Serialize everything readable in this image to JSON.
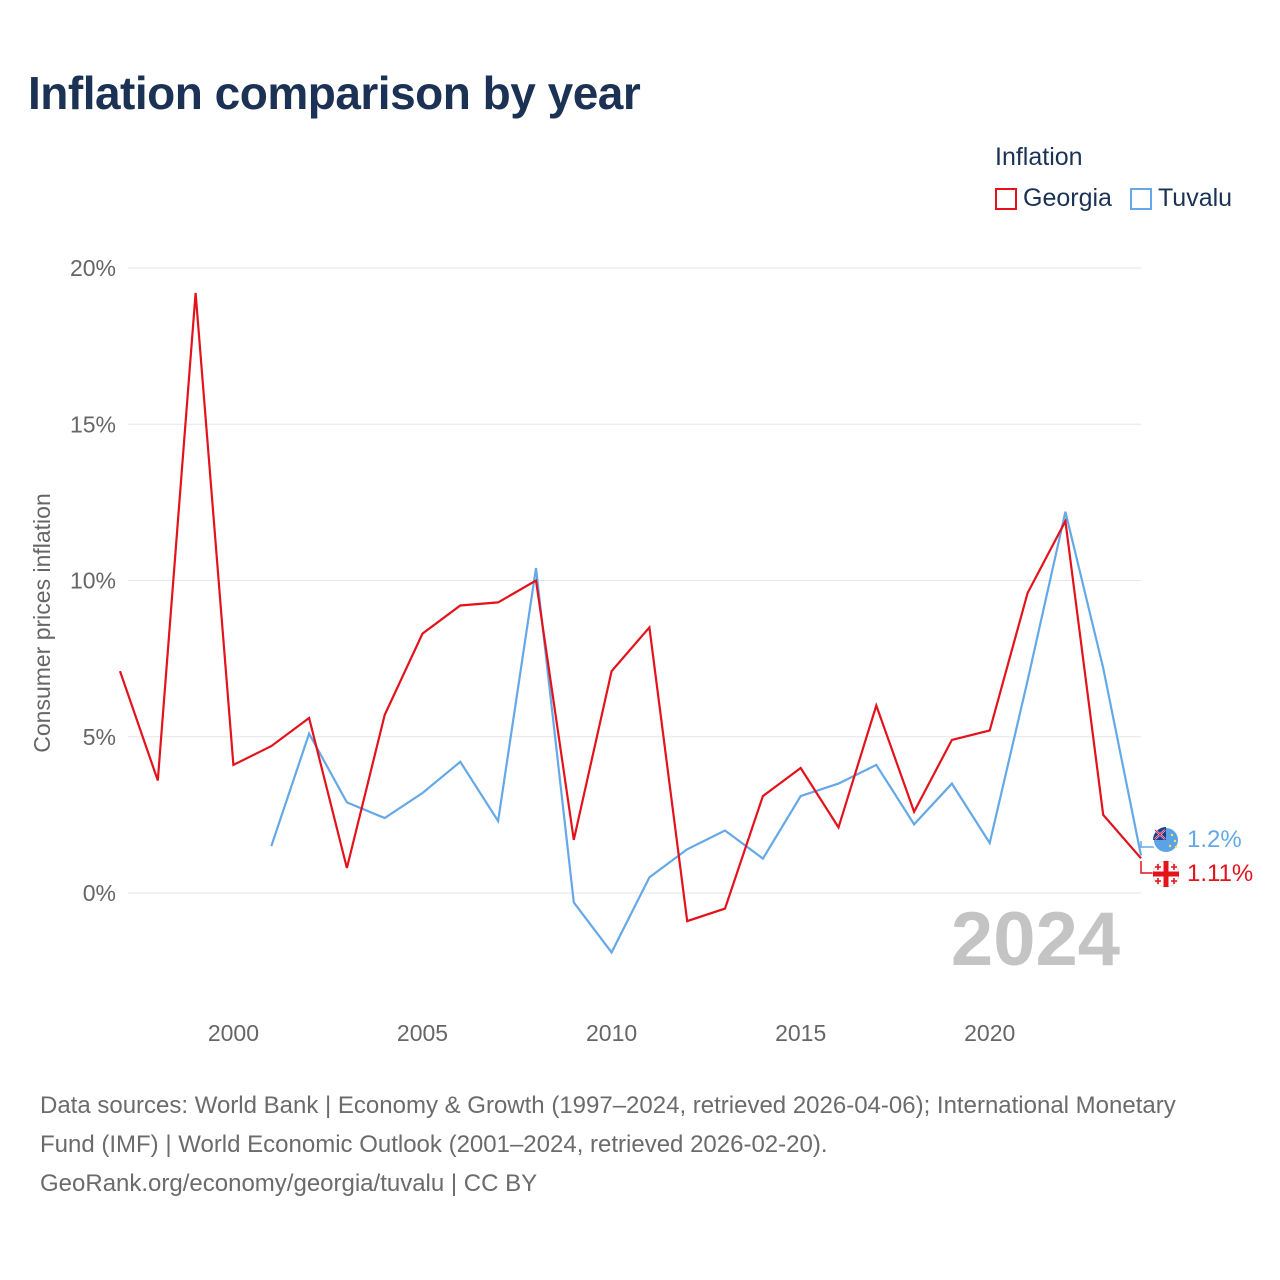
{
  "header": {
    "title": "Inflation comparison by year"
  },
  "legend": {
    "title": "Inflation",
    "items": [
      {
        "name": "Georgia",
        "color": "#e3121b"
      },
      {
        "name": "Tuvalu",
        "color": "#64a8e8"
      }
    ]
  },
  "year_label": "2024",
  "end_labels": {
    "tuvalu": "1.2%",
    "georgia": "1.11%"
  },
  "footer": {
    "sources": "Data sources: World Bank | Economy & Growth (1997–2024, retrieved 2026-04-06); International Monetary Fund (IMF) | World Economic Outlook (2001–2024, retrieved 2026-02-20).",
    "credit": "GeoRank.org/economy/georgia/tuvalu | CC BY"
  },
  "chart_data": {
    "type": "line",
    "title": "Inflation comparison by year",
    "xlabel": "",
    "ylabel": "Consumer prices inflation",
    "xlim": [
      1997,
      2024
    ],
    "ylim": [
      -3,
      20
    ],
    "x_ticks": [
      2000,
      2005,
      2010,
      2015,
      2020
    ],
    "y_ticks": [
      0,
      5,
      10,
      15,
      20
    ],
    "y_tick_labels": [
      "0%",
      "5%",
      "10%",
      "15%",
      "20%"
    ],
    "grid": true,
    "legend_position": "top-right",
    "series": [
      {
        "name": "Georgia",
        "color": "#e3121b",
        "x": [
          1997,
          1998,
          1999,
          2000,
          2001,
          2002,
          2003,
          2004,
          2005,
          2006,
          2007,
          2008,
          2009,
          2010,
          2011,
          2012,
          2013,
          2014,
          2015,
          2016,
          2017,
          2018,
          2019,
          2020,
          2021,
          2022,
          2023,
          2024
        ],
        "values": [
          7.1,
          3.6,
          19.2,
          4.1,
          4.7,
          5.6,
          0.8,
          5.7,
          8.3,
          9.2,
          9.3,
          10.0,
          1.7,
          7.1,
          8.5,
          -0.9,
          -0.5,
          3.1,
          4.0,
          2.1,
          6.0,
          2.6,
          4.9,
          5.2,
          9.6,
          11.9,
          2.5,
          1.11
        ]
      },
      {
        "name": "Tuvalu",
        "color": "#64a8e8",
        "x": [
          2001,
          2002,
          2003,
          2004,
          2005,
          2006,
          2007,
          2008,
          2009,
          2010,
          2011,
          2012,
          2013,
          2014,
          2015,
          2016,
          2017,
          2018,
          2019,
          2020,
          2021,
          2022,
          2023,
          2024
        ],
        "values": [
          1.5,
          5.1,
          2.9,
          2.4,
          3.2,
          4.2,
          2.3,
          10.4,
          -0.3,
          -1.9,
          0.5,
          1.4,
          2.0,
          1.1,
          3.1,
          3.5,
          4.1,
          2.2,
          3.5,
          1.6,
          6.8,
          12.2,
          7.2,
          1.2
        ]
      }
    ]
  }
}
